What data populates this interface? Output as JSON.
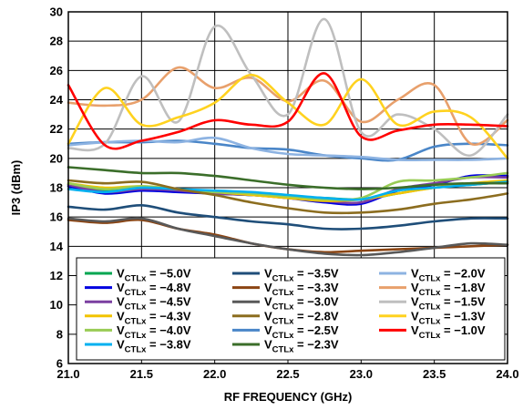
{
  "chart_data": {
    "type": "line",
    "title": "",
    "xlabel": "RF FREQUENCY (GHz)",
    "ylabel": "IP3 (dBm)",
    "xlim": [
      21.0,
      24.0
    ],
    "ylim": [
      6,
      30
    ],
    "xticks": [
      "21.0",
      "21.5",
      "22.0",
      "22.5",
      "23.0",
      "23.5",
      "24.0"
    ],
    "yticks": [
      "6",
      "8",
      "10",
      "12",
      "14",
      "16",
      "18",
      "20",
      "22",
      "24",
      "26",
      "28",
      "30"
    ],
    "grid": true,
    "legend_position": "bottom",
    "legend_prefix": "V",
    "legend_sub": "CTLx",
    "x": [
      21.0,
      21.25,
      21.5,
      21.75,
      22.0,
      22.25,
      22.5,
      22.75,
      23.0,
      23.25,
      23.5,
      23.75,
      24.0
    ],
    "series": [
      {
        "name": " = −5.0V",
        "color": "#00a651",
        "values": [
          18.2,
          17.8,
          17.9,
          17.8,
          17.6,
          17.5,
          17.4,
          17.3,
          17.2,
          17.6,
          18.0,
          18.2,
          18.4
        ]
      },
      {
        "name": " = −4.8V",
        "color": "#0000e0",
        "values": [
          18.1,
          17.6,
          17.8,
          17.7,
          17.6,
          17.5,
          17.3,
          17.0,
          16.9,
          17.8,
          18.2,
          18.8,
          18.8
        ]
      },
      {
        "name": " = −4.5V",
        "color": "#7b3fa0",
        "values": [
          18.2,
          17.7,
          17.9,
          17.8,
          17.6,
          17.5,
          17.3,
          17.1,
          17.0,
          17.9,
          18.3,
          18.7,
          18.7
        ]
      },
      {
        "name": " = −4.3V",
        "color": "#f2c400",
        "values": [
          18.3,
          18.0,
          18.1,
          17.9,
          17.7,
          17.5,
          17.3,
          17.1,
          17.2,
          17.6,
          18.0,
          18.3,
          18.5
        ]
      },
      {
        "name": " = −4.0V",
        "color": "#99cc55",
        "values": [
          18.3,
          17.9,
          18.1,
          17.9,
          17.7,
          17.6,
          17.4,
          17.2,
          17.3,
          18.4,
          18.5,
          18.7,
          19.0
        ]
      },
      {
        "name": " = −3.8V",
        "color": "#00b0f0",
        "values": [
          17.9,
          17.7,
          18.0,
          17.9,
          17.8,
          17.7,
          17.5,
          17.3,
          17.2,
          17.8,
          18.0,
          18.2,
          18.4
        ]
      },
      {
        "name": " = −3.5V",
        "color": "#1f4e79",
        "values": [
          16.7,
          16.5,
          16.8,
          16.3,
          16.0,
          15.7,
          15.5,
          15.2,
          15.2,
          15.4,
          15.7,
          15.9,
          15.9
        ]
      },
      {
        "name": " = −3.3V",
        "color": "#8b4513",
        "values": [
          15.8,
          15.6,
          15.8,
          15.2,
          14.8,
          14.2,
          13.8,
          13.6,
          13.7,
          13.8,
          13.9,
          14.0,
          14.1
        ]
      },
      {
        "name": " = −3.0V",
        "color": "#595959",
        "values": [
          15.9,
          15.7,
          15.9,
          15.2,
          14.7,
          14.2,
          13.8,
          13.5,
          13.4,
          13.6,
          13.9,
          14.2,
          14.1
        ]
      },
      {
        "name": " = −2.8V",
        "color": "#8c6d1f",
        "values": [
          18.5,
          18.3,
          18.4,
          17.9,
          17.5,
          17.0,
          16.6,
          16.3,
          16.3,
          16.5,
          16.9,
          17.2,
          17.6
        ]
      },
      {
        "name": " = −2.5V",
        "color": "#4a86c8",
        "values": [
          21.0,
          21.1,
          21.1,
          21.2,
          21.0,
          20.7,
          20.6,
          20.2,
          20.0,
          19.9,
          20.8,
          21.0,
          20.9
        ]
      },
      {
        "name": " = −2.3V",
        "color": "#3b6e2a",
        "values": [
          19.4,
          19.2,
          19.0,
          19.0,
          18.8,
          18.5,
          18.2,
          18.0,
          17.9,
          18.0,
          18.2,
          18.3,
          18.3
        ]
      },
      {
        "name": " = −2.0V",
        "color": "#8db3e2",
        "values": [
          20.9,
          21.1,
          21.2,
          21.1,
          21.4,
          20.7,
          20.3,
          20.2,
          20.1,
          19.9,
          19.9,
          19.9,
          20.0
        ]
      },
      {
        "name": " = −1.8V",
        "color": "#e8a06c",
        "values": [
          23.8,
          23.6,
          24.0,
          26.2,
          24.8,
          25.5,
          23.9,
          25.3,
          22.5,
          24.0,
          25.0,
          21.0,
          22.6
        ]
      },
      {
        "name": " = −1.5V",
        "color": "#bfbfbf",
        "values": [
          20.7,
          21.0,
          25.6,
          22.5,
          29.0,
          25.7,
          23.0,
          29.5,
          21.8,
          23.0,
          22.0,
          20.2,
          23.0
        ]
      },
      {
        "name": " = −1.3V",
        "color": "#ffd21f",
        "values": [
          21.0,
          24.8,
          22.3,
          22.8,
          23.8,
          25.7,
          23.8,
          22.3,
          25.4,
          22.3,
          23.2,
          22.8,
          20.0
        ]
      },
      {
        "name": " = −1.0V",
        "color": "#ff0000",
        "values": [
          25.0,
          20.9,
          21.2,
          21.8,
          22.6,
          22.3,
          22.5,
          25.8,
          21.5,
          21.9,
          22.3,
          22.3,
          22.2
        ]
      }
    ]
  }
}
